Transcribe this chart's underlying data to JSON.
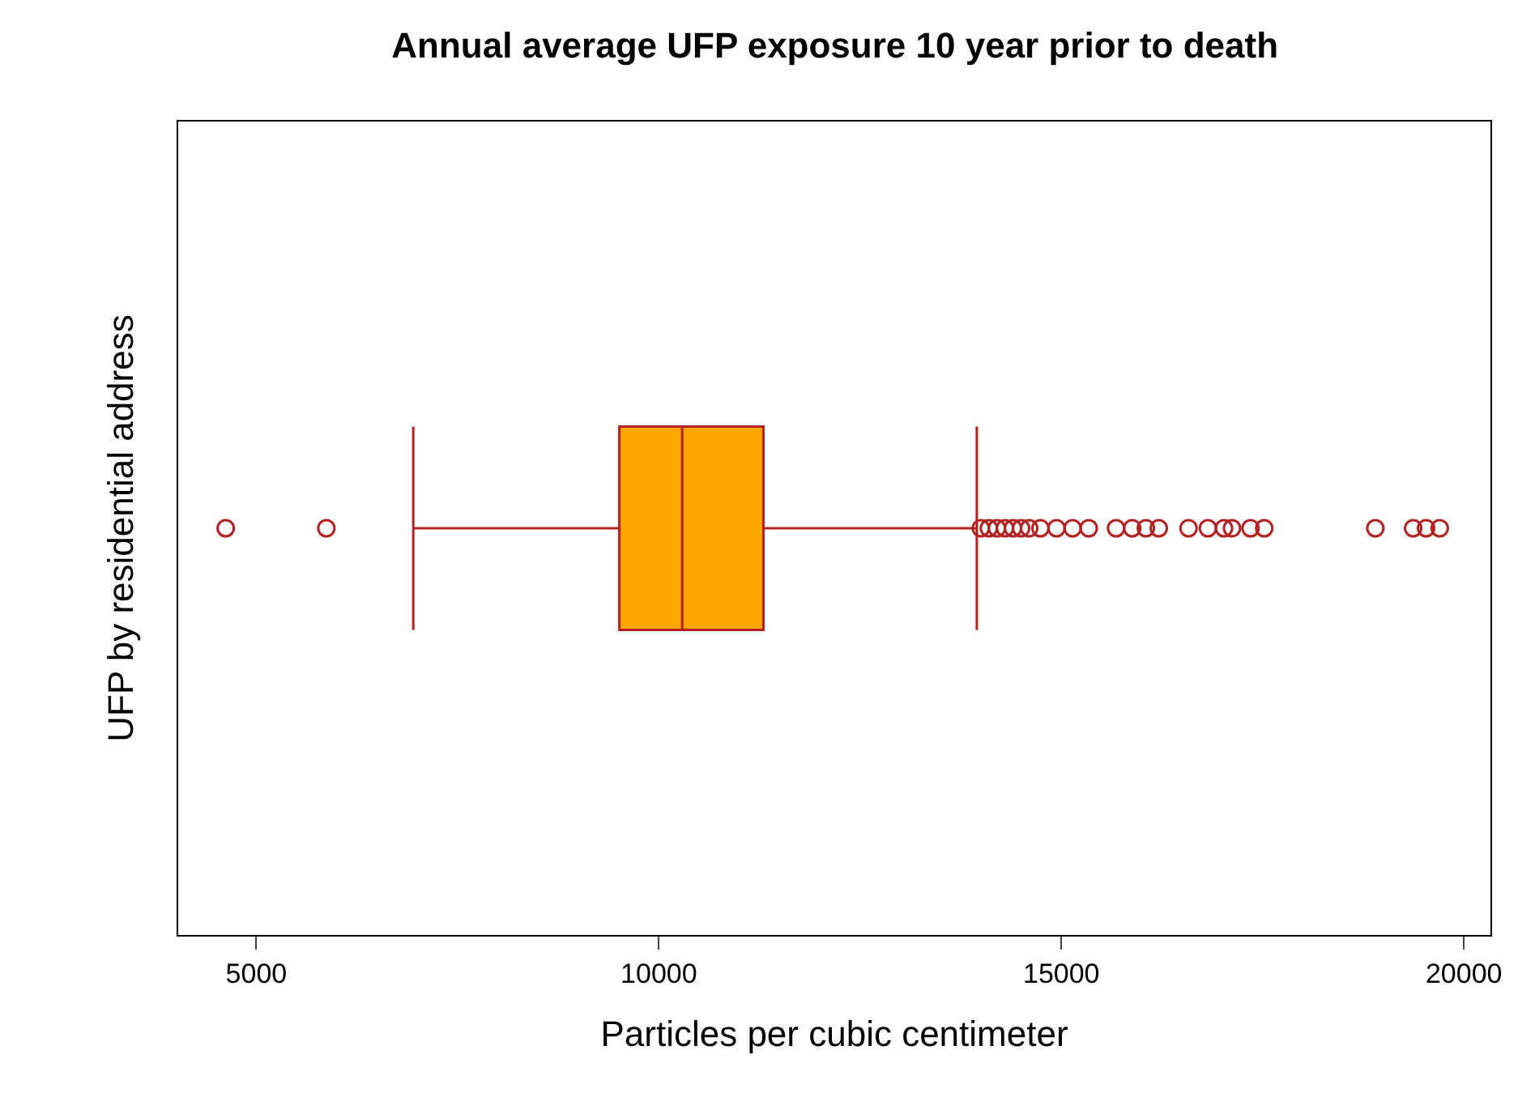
{
  "chart_data": {
    "type": "box",
    "orientation": "horizontal",
    "title": "Annual average UFP exposure 10 year prior to death",
    "xlabel": "Particles per cubic centimeter",
    "ylabel": "UFP by residential address",
    "categories": [
      null
    ],
    "series": [
      {
        "color": "#b22222",
        "boxes": [
          {
            "low": 6950,
            "q1": 9510,
            "median": 10290,
            "q3": 11300,
            "high": 13950,
            "outliers": [
              4620,
              5870,
              14000,
              14100,
              14200,
              14300,
              14400,
              14500,
              14600,
              14740,
              14940,
              15140,
              15340,
              15680,
              15880,
              16050,
              16210,
              16580,
              16820,
              17020,
              17120,
              17350,
              17520,
              18900,
              19370,
              19530,
              19700
            ]
          }
        ]
      }
    ],
    "color": "#ffa500",
    "marker": "circle",
    "xlim": [
      4030,
      20330
    ],
    "xticks": [
      5000,
      10000,
      15000,
      20000
    ],
    "tick_labels": "x"
  }
}
